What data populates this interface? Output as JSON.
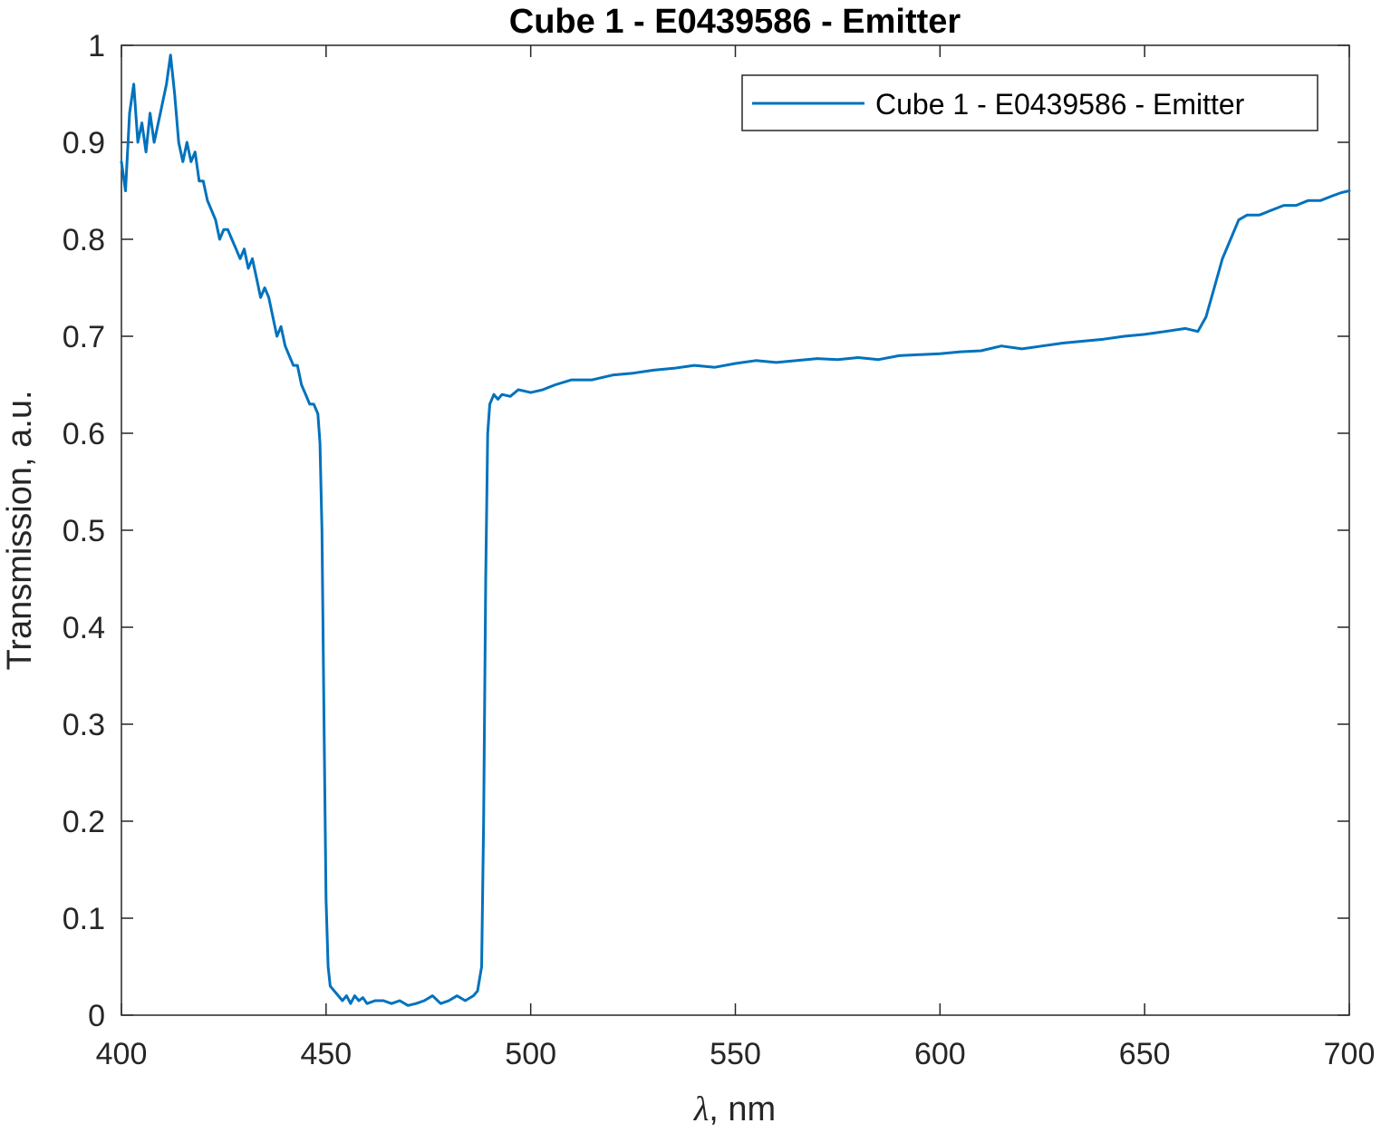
{
  "chart_data": {
    "type": "line",
    "title": "Cube 1 - E0439586 - Emitter",
    "xlabel_symbol": "λ",
    "xlabel_unit": ", nm",
    "ylabel": "Transmission, a.u.",
    "xlim": [
      400,
      700
    ],
    "ylim": [
      0,
      1
    ],
    "xticks": [
      400,
      450,
      500,
      550,
      600,
      650,
      700
    ],
    "yticks": [
      0,
      0.1,
      0.2,
      0.3,
      0.4,
      0.5,
      0.6,
      0.7,
      0.8,
      0.9,
      1
    ],
    "ytick_labels": [
      "0",
      "0.1",
      "0.2",
      "0.3",
      "0.4",
      "0.5",
      "0.6",
      "0.7",
      "0.8",
      "0.9",
      "1"
    ],
    "grid": false,
    "legend_position": "top-right",
    "series": [
      {
        "name": "Cube 1 - E0439586 - Emitter",
        "color": "#0072BD",
        "x": [
          400,
          401,
          402,
          403,
          404,
          405,
          406,
          407,
          408,
          409,
          410,
          411,
          412,
          413,
          414,
          415,
          416,
          417,
          418,
          419,
          420,
          421,
          422,
          423,
          424,
          425,
          426,
          427,
          428,
          429,
          430,
          431,
          432,
          433,
          434,
          435,
          436,
          437,
          438,
          439,
          440,
          441,
          442,
          443,
          444,
          445,
          446,
          447,
          448,
          448.5,
          449,
          449.5,
          450,
          450.5,
          451,
          452,
          453,
          454,
          455,
          456,
          457,
          458,
          459,
          460,
          462,
          464,
          466,
          468,
          470,
          472,
          474,
          476,
          478,
          480,
          482,
          484,
          486,
          487,
          488,
          488.5,
          489,
          489.5,
          490,
          491,
          492,
          493,
          495,
          497,
          500,
          503,
          506,
          510,
          515,
          520,
          525,
          530,
          535,
          540,
          545,
          550,
          555,
          560,
          565,
          570,
          575,
          580,
          585,
          590,
          595,
          600,
          605,
          610,
          615,
          620,
          625,
          630,
          635,
          640,
          645,
          650,
          655,
          660,
          663,
          665,
          667,
          669,
          671,
          673,
          675,
          678,
          681,
          684,
          687,
          690,
          693,
          696,
          698,
          700
        ],
        "y": [
          0.88,
          0.85,
          0.93,
          0.96,
          0.9,
          0.92,
          0.89,
          0.93,
          0.9,
          0.92,
          0.94,
          0.96,
          0.99,
          0.95,
          0.9,
          0.88,
          0.9,
          0.88,
          0.89,
          0.86,
          0.86,
          0.84,
          0.83,
          0.82,
          0.8,
          0.81,
          0.81,
          0.8,
          0.79,
          0.78,
          0.79,
          0.77,
          0.78,
          0.76,
          0.74,
          0.75,
          0.74,
          0.72,
          0.7,
          0.71,
          0.69,
          0.68,
          0.67,
          0.67,
          0.65,
          0.64,
          0.63,
          0.63,
          0.62,
          0.59,
          0.5,
          0.3,
          0.12,
          0.05,
          0.03,
          0.025,
          0.02,
          0.015,
          0.02,
          0.012,
          0.02,
          0.015,
          0.018,
          0.012,
          0.015,
          0.015,
          0.012,
          0.015,
          0.01,
          0.012,
          0.015,
          0.02,
          0.012,
          0.015,
          0.02,
          0.015,
          0.02,
          0.025,
          0.05,
          0.2,
          0.45,
          0.6,
          0.63,
          0.64,
          0.635,
          0.64,
          0.638,
          0.645,
          0.642,
          0.645,
          0.65,
          0.655,
          0.655,
          0.66,
          0.662,
          0.665,
          0.667,
          0.67,
          0.668,
          0.672,
          0.675,
          0.673,
          0.675,
          0.677,
          0.676,
          0.678,
          0.676,
          0.68,
          0.681,
          0.682,
          0.684,
          0.685,
          0.69,
          0.687,
          0.69,
          0.693,
          0.695,
          0.697,
          0.7,
          0.702,
          0.705,
          0.708,
          0.705,
          0.72,
          0.75,
          0.78,
          0.8,
          0.82,
          0.825,
          0.825,
          0.83,
          0.835,
          0.835,
          0.84,
          0.84,
          0.845,
          0.848,
          0.85
        ]
      }
    ]
  }
}
